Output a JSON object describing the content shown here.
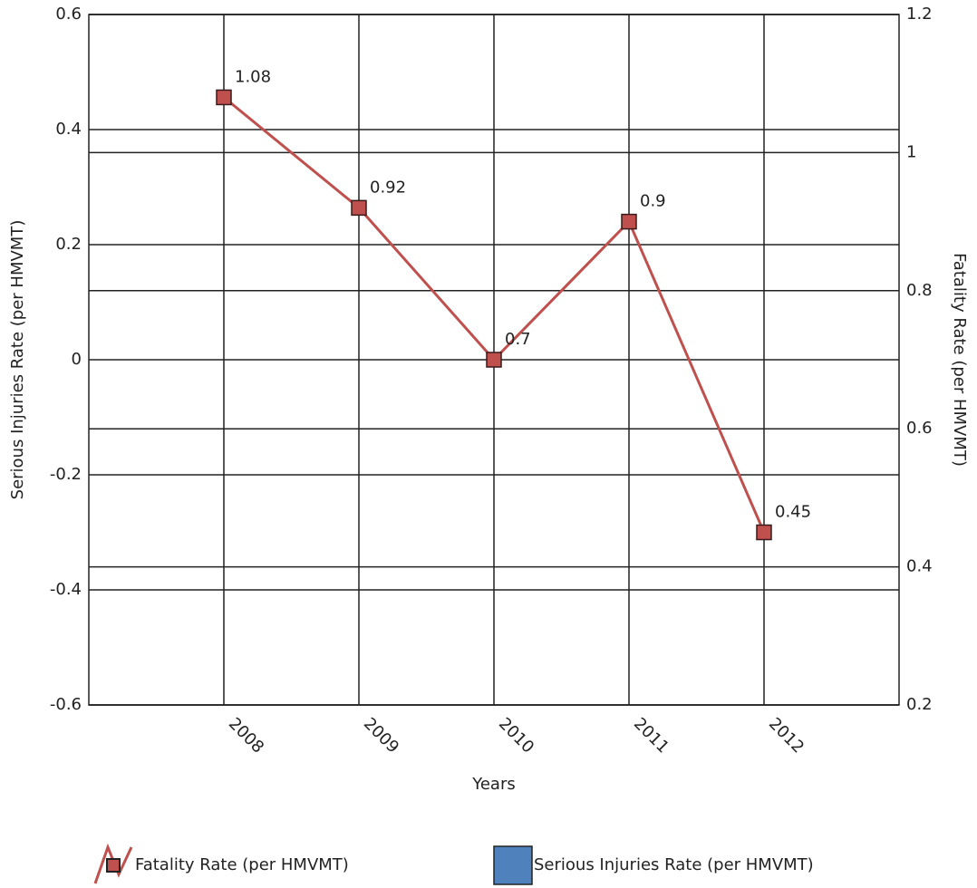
{
  "chart_data": {
    "type": "line",
    "categories": [
      "2008",
      "2009",
      "2010",
      "2011",
      "2012"
    ],
    "xlabel": "Years",
    "ylabel": "Serious Injuries Rate (per HMVMT)",
    "y2label": "Fatality Rate (per HMVMT)",
    "ylim": [
      -0.6,
      0.6
    ],
    "yticks": [
      -0.6,
      -0.4,
      -0.2,
      0,
      0.2,
      0.4,
      0.6
    ],
    "y2lim": [
      0.2,
      1.2
    ],
    "y2ticks": [
      0.2,
      0.4,
      0.6,
      0.8,
      1,
      1.2
    ],
    "grid": true,
    "legend": "bottom",
    "series": [
      {
        "name": "Fatality Rate (per HMVMT)",
        "color": "#c0504d",
        "axis": "y2",
        "values": [
          1.08,
          0.92,
          0.7,
          0.9,
          0.45
        ]
      },
      {
        "name": "Serious Injuries Rate (per HMVMT)",
        "color": "#4f81bd",
        "values": [
          null,
          null,
          null,
          null,
          null
        ]
      }
    ]
  }
}
